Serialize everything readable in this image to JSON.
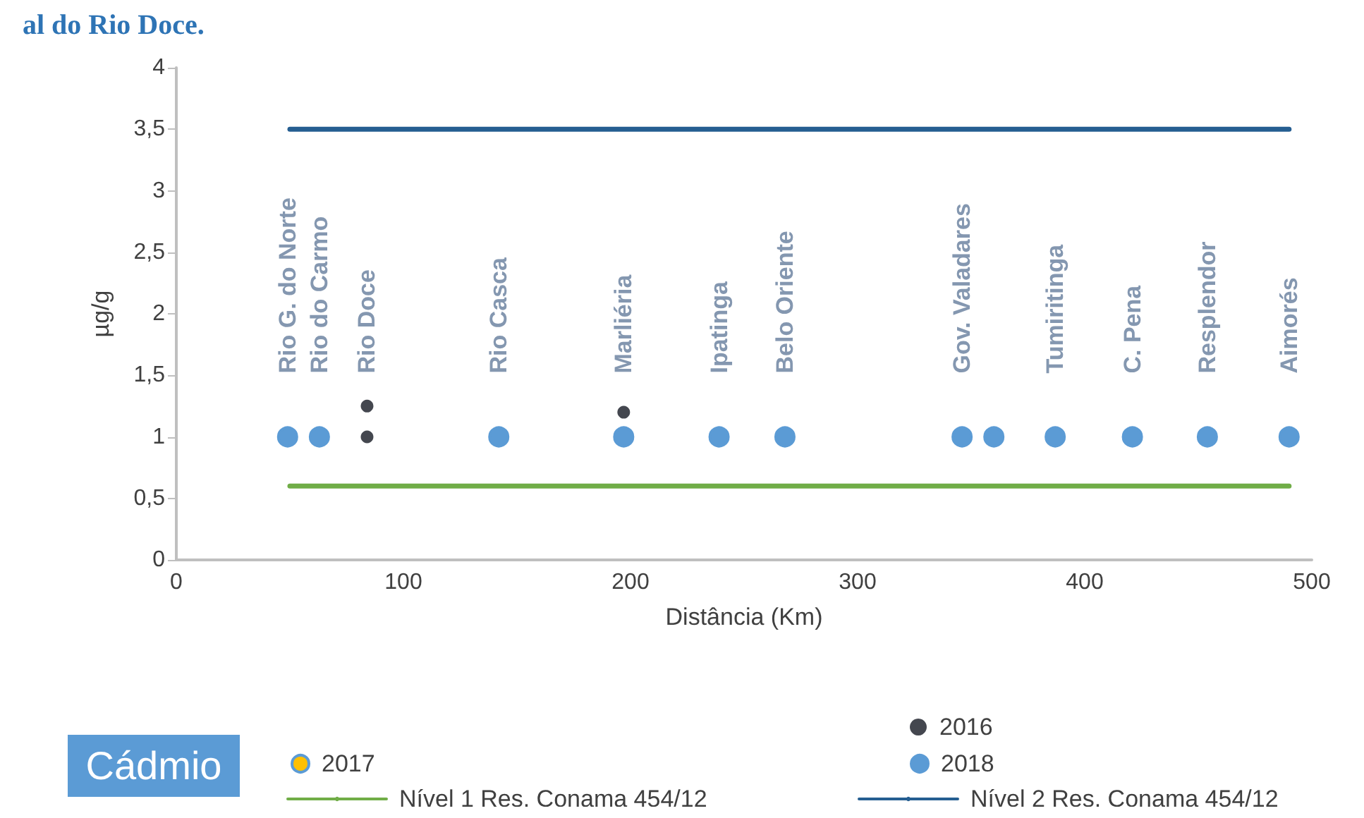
{
  "chart_data": {
    "type": "scatter",
    "title": "al do Rio Doce.",
    "xlabel": "Distância (Km)",
    "ylabel": "µg/g",
    "xlim": [
      0,
      500
    ],
    "xticks": [
      0,
      100,
      200,
      300,
      400,
      500
    ],
    "ylim": [
      0,
      4
    ],
    "yticks": [
      0,
      {
        "value": 0.5,
        "label": "0,5"
      },
      1,
      {
        "value": 1.5,
        "label": "1,5"
      },
      2,
      {
        "value": 2.5,
        "label": "2,5"
      },
      3,
      {
        "value": 3.5,
        "label": "3,5"
      },
      4
    ],
    "grid": false,
    "legend": "bottom",
    "series": [
      {
        "name": "2016",
        "color": "#44474f",
        "marker": "circle",
        "x": [
          84,
          84,
          197
        ],
        "values": [
          1.25,
          1,
          1.2
        ]
      },
      {
        "name": "2017",
        "color": "#ffc000",
        "marker": "circle"
      },
      {
        "name": "2018",
        "color": "#5b9bd5",
        "marker": "circle",
        "x": [
          49,
          63,
          142,
          197,
          239,
          268,
          346,
          360,
          387,
          421,
          454,
          490
        ],
        "values": [
          1,
          1,
          1,
          1,
          1,
          1,
          1,
          1,
          1,
          1,
          1,
          1
        ]
      },
      {
        "name": "Nível 1 Res. Conama 454/12",
        "type": "line",
        "color": "#70ad47",
        "x": [
          50,
          490
        ],
        "values": [
          0.6,
          0.6
        ]
      },
      {
        "name": "Nível 2 Res. Conama 454/12",
        "type": "line",
        "color": "#255e91",
        "x": [
          50,
          490
        ],
        "values": [
          3.5,
          3.5
        ]
      }
    ],
    "annotations": [
      "Cádmio",
      {
        "text": "Rio G. do Norte",
        "x": 49,
        "y": 1
      },
      {
        "text": "Rio do Carmo",
        "x": 63,
        "y": 1
      },
      {
        "text": "Rio Doce",
        "x": 84,
        "y": 1
      },
      {
        "text": "Rio Casca",
        "x": 142,
        "y": 1
      },
      {
        "text": "Marliéria",
        "x": 197,
        "y": 1
      },
      {
        "text": "Ipatinga",
        "x": 239,
        "y": 1
      },
      {
        "text": "Belo Oriente",
        "x": 268,
        "y": 1
      },
      {
        "text": "Gov. Valadares",
        "x": 346,
        "y": 1
      },
      {
        "text": "Tumiritinga",
        "x": 387,
        "y": 1
      },
      {
        "text": "C. Pena",
        "x": 421,
        "y": 1
      },
      {
        "text": "Resplendor",
        "x": 454,
        "y": 1
      },
      {
        "text": "Aimorés",
        "x": 490,
        "y": 1
      }
    ]
  }
}
